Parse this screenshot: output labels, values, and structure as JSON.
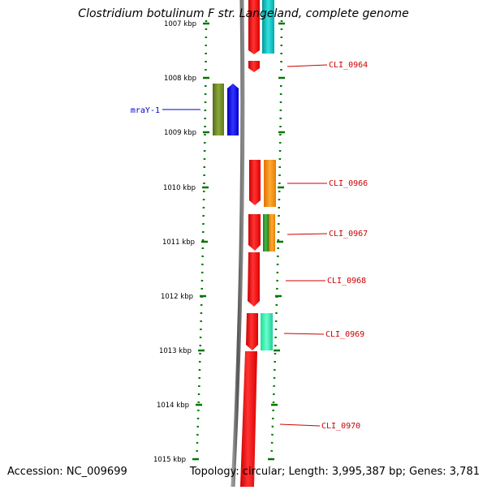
{
  "title": "Clostridium botulinum F str. Langeland, complete genome",
  "accession": "Accession: NC_009699",
  "topology": "Topology: circular; Length: 3,995,387 bp; Genes: 3,781",
  "colors": {
    "red": "#ff0000",
    "olive": "#6b8e23",
    "blue": "#0000ff",
    "cyan": "#00c8c8",
    "orange": "#ff8c00",
    "green": "#2e8b57",
    "aquamarine": "#33ffbb",
    "backbone": "#808080",
    "tick": "#007700",
    "label_red": "#cc0000",
    "label_blue": "#0000cc"
  },
  "ticks": [
    "1007 kbp",
    "1008 kbp",
    "1009 kbp",
    "1010 kbp",
    "1011 kbp",
    "1012 kbp",
    "1013 kbp",
    "1014 kbp",
    "1015 kbp"
  ],
  "gene_labels": [
    "mraY-1",
    "CLI_0964",
    "CLI_0966",
    "CLI_0967",
    "CLI_0968",
    "CLI_0969",
    "CLI_0970"
  ]
}
